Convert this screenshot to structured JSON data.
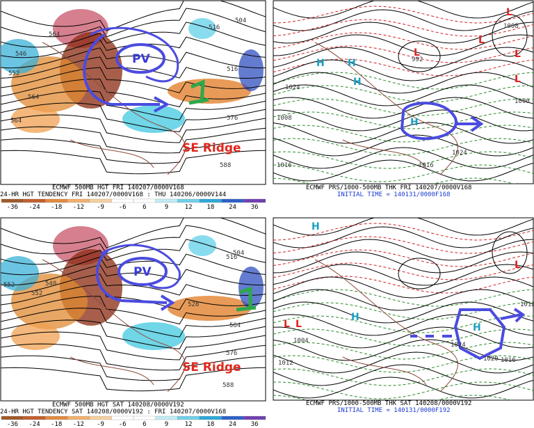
{
  "top_left": {
    "caption_1": "ECMWF 500MB HGT FRI 140207/0000V168",
    "caption_2": "24-HR HGT TENDENCY FRI 140207/0000V168 : THU 140206/0000V144",
    "pv": "PV",
    "ridge": "SE Ridge",
    "contour_labels": [
      "564",
      "552",
      "504",
      "516",
      "564",
      "564",
      "516",
      "576",
      "588",
      "546"
    ],
    "colorbar": [
      "-36",
      "-24",
      "-18",
      "-12",
      "-9",
      "-6",
      "6",
      "9",
      "12",
      "18",
      "24",
      "36"
    ]
  },
  "top_right": {
    "caption_1": "ECMWF PRS/1000-500MB THK FRI 140207/0000V168",
    "caption_2": "INITIAL TIME = 140131/0000F168",
    "highs": [
      "H",
      "H",
      "H",
      "H"
    ],
    "lows": [
      "L",
      "L",
      "L",
      "L",
      "L"
    ],
    "contour_labels": [
      "1008",
      "1024",
      "1016",
      "1016",
      "992",
      "1000",
      "1024",
      "1008"
    ]
  },
  "bottom_left": {
    "caption_1": "ECMWF 500MB HGT SAT 140208/0000V192",
    "caption_2": "24-HR HGT TENDENCY SAT 140208/0000V192 : FRI 140207/0000V168",
    "pv": "PV",
    "ridge": "SE Ridge",
    "contour_labels": [
      "552",
      "540",
      "552",
      "504",
      "516",
      "528",
      "564",
      "576",
      "588"
    ],
    "colorbar": [
      "-36",
      "-24",
      "-18",
      "-12",
      "-9",
      "-6",
      "6",
      "9",
      "12",
      "18",
      "24",
      "36"
    ]
  },
  "bottom_right": {
    "caption_1": "ECMWF PRS/1000-500MB THK SAT 140208/0000V192",
    "caption_2": "INITIAL TIME = 140131/0000F192",
    "highs": [
      "H",
      "H",
      "H"
    ],
    "lows": [
      "L",
      "L",
      "L"
    ],
    "contour_labels": [
      "1004",
      "1012",
      "1024",
      "1016",
      "1020",
      "1012"
    ]
  }
}
